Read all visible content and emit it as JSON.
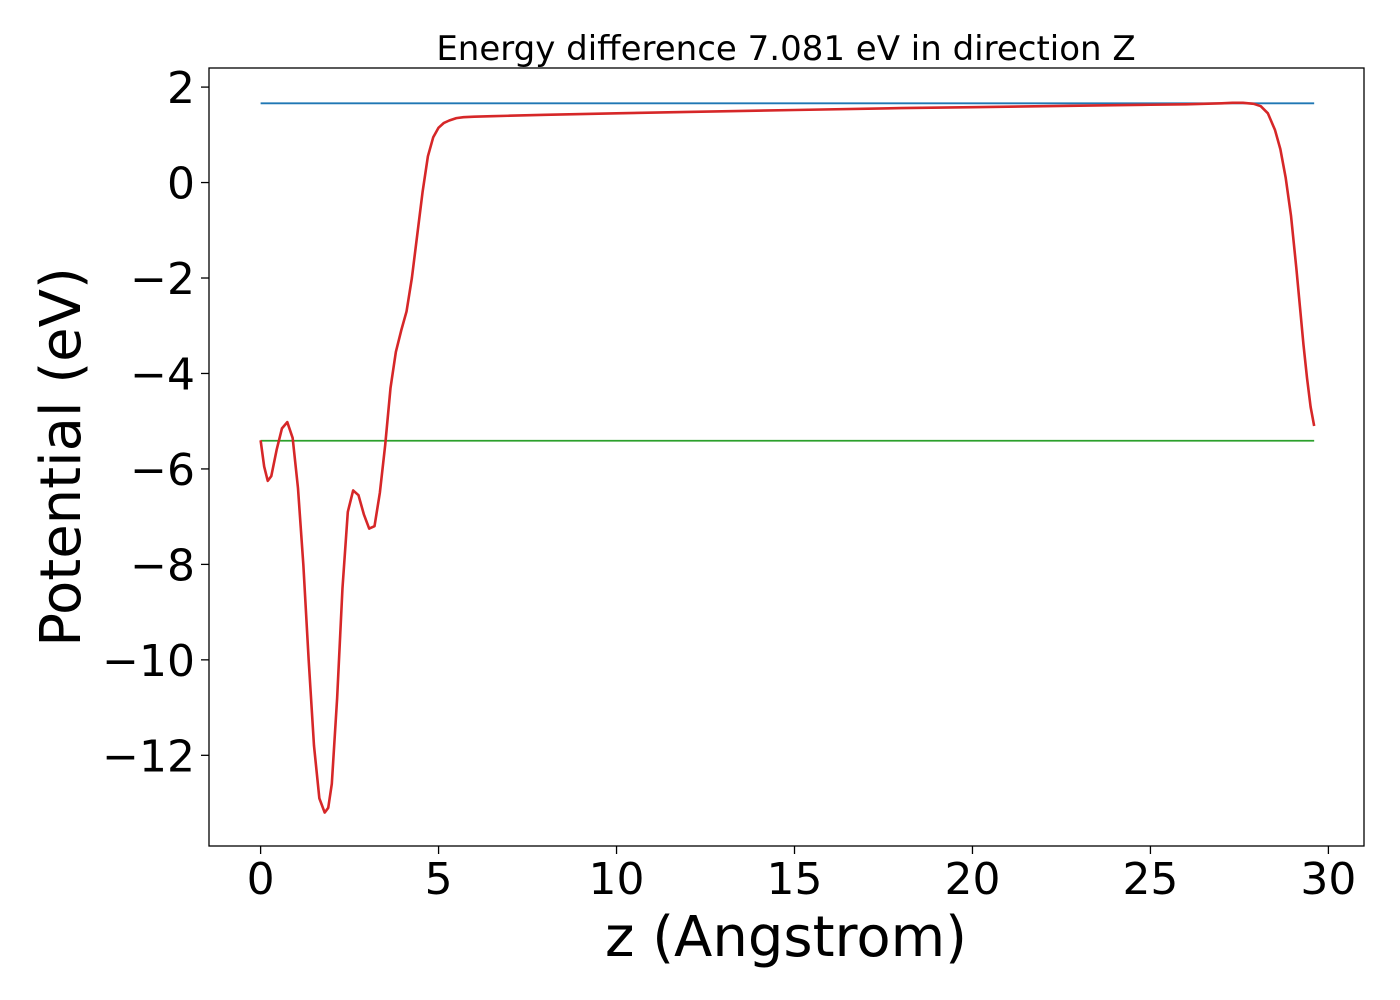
{
  "chart_data": {
    "type": "line",
    "title": "Energy difference 7.081 eV in direction Z",
    "xlabel": "z (Angstrom)",
    "ylabel": "Potential (eV)",
    "xlim": [
      -1.45,
      31.0
    ],
    "ylim": [
      -13.9,
      2.4
    ],
    "xticks": [
      0,
      5,
      10,
      15,
      20,
      25,
      30
    ],
    "xtick_labels": [
      "0",
      "5",
      "10",
      "15",
      "20",
      "25",
      "30"
    ],
    "yticks": [
      2,
      0,
      -2,
      -4,
      -6,
      -8,
      -10,
      -12
    ],
    "ytick_labels": [
      "2",
      "0",
      "−2",
      "−4",
      "−6",
      "−8",
      "−10",
      "−12"
    ],
    "grid": false,
    "series": [
      {
        "color": "#1f77b4",
        "x": [
          0,
          29.6
        ],
        "y": [
          1.66,
          1.66
        ]
      },
      {
        "color": "#2ca02c",
        "x": [
          0,
          29.6
        ],
        "y": [
          -5.41,
          -5.41
        ]
      },
      {
        "color": "#d62728",
        "x": [
          0.0,
          0.1,
          0.2,
          0.3,
          0.45,
          0.6,
          0.75,
          0.9,
          1.05,
          1.2,
          1.35,
          1.5,
          1.65,
          1.8,
          1.9,
          2.0,
          2.15,
          2.3,
          2.45,
          2.6,
          2.75,
          2.9,
          3.05,
          3.2,
          3.35,
          3.5,
          3.65,
          3.8,
          3.95,
          4.1,
          4.25,
          4.4,
          4.55,
          4.7,
          4.85,
          5.0,
          5.15,
          5.3,
          5.5,
          5.7,
          6.0,
          6.5,
          7.0,
          8.0,
          10.0,
          12.0,
          15.0,
          18.0,
          20.0,
          22.0,
          24.0,
          25.0,
          26.0,
          26.5,
          27.0,
          27.3,
          27.6,
          27.9,
          28.1,
          28.3,
          28.5,
          28.65,
          28.8,
          28.95,
          29.1,
          29.2,
          29.3,
          29.4,
          29.5,
          29.6
        ],
        "y": [
          -5.4,
          -5.95,
          -6.25,
          -6.15,
          -5.6,
          -5.15,
          -5.02,
          -5.35,
          -6.4,
          -8.0,
          -10.0,
          -11.8,
          -12.9,
          -13.2,
          -13.1,
          -12.6,
          -10.8,
          -8.5,
          -6.9,
          -6.45,
          -6.55,
          -6.95,
          -7.25,
          -7.2,
          -6.5,
          -5.5,
          -4.3,
          -3.55,
          -3.1,
          -2.7,
          -2.0,
          -1.1,
          -0.2,
          0.55,
          0.95,
          1.15,
          1.25,
          1.3,
          1.35,
          1.37,
          1.38,
          1.39,
          1.4,
          1.42,
          1.45,
          1.48,
          1.52,
          1.56,
          1.58,
          1.6,
          1.62,
          1.63,
          1.64,
          1.65,
          1.66,
          1.67,
          1.67,
          1.65,
          1.6,
          1.45,
          1.1,
          0.7,
          0.1,
          -0.7,
          -1.8,
          -2.6,
          -3.4,
          -4.1,
          -4.7,
          -5.1
        ]
      }
    ]
  }
}
